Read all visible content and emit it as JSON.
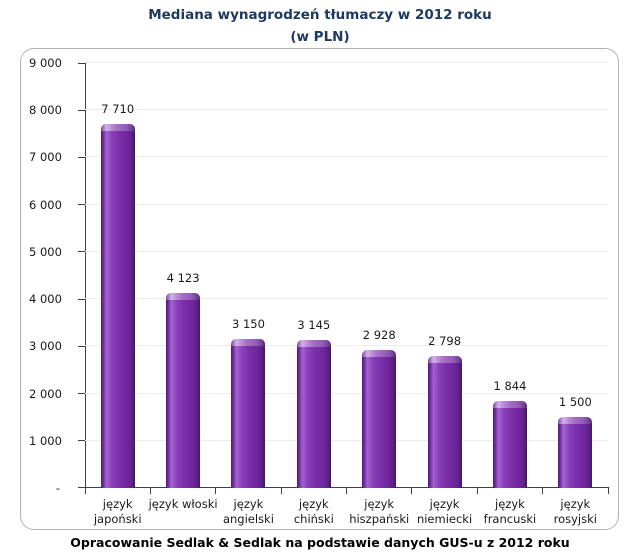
{
  "title": {
    "line1": "Mediana wynagrodzeń tłumaczy w 2012 roku",
    "line2": "(w PLN)"
  },
  "caption": "Opracowanie Sedlak & Sedlak na podstawie danych GUS-u z 2012 roku",
  "colors": {
    "bar_main": "#7A2EA8",
    "bar_dark": "#45155F",
    "bar_highlight": "#A867D4",
    "title_text": "#1F3960",
    "gridline": "#EBEBEB",
    "axis": "#3F3F3F",
    "frame_border": "#B3B3B3",
    "label_text": "#1A1A1A"
  },
  "chart_data": {
    "type": "bar",
    "title": "Mediana wynagrodzeń tłumaczy w 2012 roku (w PLN)",
    "xlabel": "",
    "ylabel": "",
    "categories": [
      "język japoński",
      "język włoski",
      "język angielski",
      "język chiński",
      "język hiszpański",
      "język niemiecki",
      "język francuski",
      "język rosyjski"
    ],
    "category_lines": [
      [
        "język",
        "japoński"
      ],
      [
        "język włoski"
      ],
      [
        "język",
        "angielski"
      ],
      [
        "język",
        "chiński"
      ],
      [
        "język",
        "hiszpański"
      ],
      [
        "język",
        "niemiecki"
      ],
      [
        "język",
        "francuski"
      ],
      [
        "język",
        "rosyjski"
      ]
    ],
    "values": [
      7710,
      4123,
      3150,
      3145,
      2928,
      2798,
      1844,
      1500
    ],
    "value_labels": [
      "7 710",
      "4 123",
      "3 150",
      "3 145",
      "2 928",
      "2 798",
      "1 844",
      "1 500"
    ],
    "ylim": [
      0,
      9000
    ],
    "yticks": [
      9000,
      8000,
      7000,
      6000,
      5000,
      4000,
      3000,
      2000,
      1000,
      0
    ],
    "ytick_labels": [
      "9 000",
      "8 000",
      "7 000",
      "6 000",
      "5 000",
      "4 000",
      "3 000",
      "2 000",
      "1 000",
      "-"
    ],
    "grid": true,
    "legend": false
  }
}
